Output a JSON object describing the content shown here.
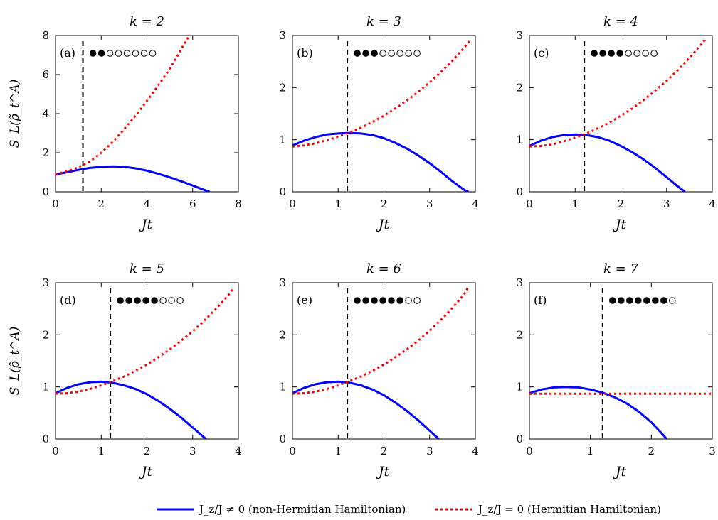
{
  "chart_data": [
    {
      "type": "line",
      "title": "k = 2",
      "panel_label": "(a)",
      "xlabel": "Jt",
      "ylabel": "S_L(ρ̃_t^A)",
      "xlim": [
        0,
        8
      ],
      "ylim": [
        0,
        8
      ],
      "xticks": [
        0,
        2,
        4,
        6,
        8
      ],
      "yticks": [
        0,
        2,
        4,
        6,
        8
      ],
      "dashed_vline_x": 1.2,
      "occupation": {
        "filled": 2,
        "empty": 6
      },
      "series": [
        {
          "name": "J_z/J ≠ 0 (non-Hermitian Hamiltonian)",
          "style": "solid",
          "color": "#0000ff",
          "x": [
            0,
            0.5,
            1,
            1.5,
            2,
            2.5,
            3,
            3.5,
            4,
            4.5,
            5,
            5.5,
            6,
            6.5,
            6.75
          ],
          "y": [
            0.88,
            1.0,
            1.12,
            1.22,
            1.28,
            1.3,
            1.28,
            1.2,
            1.08,
            0.92,
            0.74,
            0.54,
            0.32,
            0.1,
            0
          ]
        },
        {
          "name": "J_z/J = 0 (Hermitian Hamiltonian)",
          "style": "dotted",
          "color": "#ff0000",
          "x": [
            0,
            0.5,
            1,
            1.5,
            2,
            2.5,
            3,
            3.5,
            4,
            4.5,
            5,
            5.5,
            5.85
          ],
          "y": [
            0.88,
            1.05,
            1.25,
            1.55,
            2.0,
            2.55,
            3.2,
            3.9,
            4.65,
            5.45,
            6.3,
            7.3,
            8.0
          ]
        }
      ]
    },
    {
      "type": "line",
      "title": "k = 3",
      "panel_label": "(b)",
      "xlabel": "Jt",
      "ylabel": "",
      "xlim": [
        0,
        4
      ],
      "ylim": [
        0,
        3
      ],
      "xticks": [
        0,
        1,
        2,
        3,
        4
      ],
      "yticks": [
        0,
        1,
        2,
        3
      ],
      "dashed_vline_x": 1.2,
      "occupation": {
        "filled": 3,
        "empty": 5
      },
      "series": [
        {
          "name": "J_z/J ≠ 0 (non-Hermitian Hamiltonian)",
          "style": "solid",
          "color": "#0000ff",
          "x": [
            0,
            0.25,
            0.5,
            0.75,
            1,
            1.25,
            1.5,
            1.75,
            2,
            2.25,
            2.5,
            2.75,
            3,
            3.25,
            3.5,
            3.75,
            3.85
          ],
          "y": [
            0.89,
            0.98,
            1.05,
            1.1,
            1.12,
            1.13,
            1.12,
            1.09,
            1.03,
            0.94,
            0.83,
            0.7,
            0.55,
            0.38,
            0.2,
            0.04,
            0
          ]
        },
        {
          "name": "J_z/J = 0 (Hermitian Hamiltonian)",
          "style": "dotted",
          "color": "#ff0000",
          "x": [
            0,
            0.25,
            0.5,
            0.75,
            1,
            1.25,
            1.5,
            1.75,
            2,
            2.25,
            2.5,
            2.75,
            3,
            3.25,
            3.5,
            3.75,
            3.9
          ],
          "y": [
            0.87,
            0.89,
            0.93,
            0.99,
            1.06,
            1.14,
            1.23,
            1.34,
            1.46,
            1.6,
            1.75,
            1.92,
            2.1,
            2.3,
            2.52,
            2.76,
            2.92
          ]
        }
      ]
    },
    {
      "type": "line",
      "title": "k = 4",
      "panel_label": "(c)",
      "xlabel": "Jt",
      "ylabel": "",
      "xlim": [
        0,
        4
      ],
      "ylim": [
        0,
        3
      ],
      "xticks": [
        0,
        1,
        2,
        3,
        4
      ],
      "yticks": [
        0,
        1,
        2,
        3
      ],
      "dashed_vline_x": 1.2,
      "occupation": {
        "filled": 4,
        "empty": 4
      },
      "series": [
        {
          "name": "J_z/J ≠ 0 (non-Hermitian Hamiltonian)",
          "style": "solid",
          "color": "#0000ff",
          "x": [
            0,
            0.25,
            0.5,
            0.75,
            1,
            1.25,
            1.5,
            1.75,
            2,
            2.25,
            2.5,
            2.75,
            3,
            3.25,
            3.4
          ],
          "y": [
            0.88,
            0.98,
            1.05,
            1.09,
            1.1,
            1.09,
            1.05,
            0.98,
            0.88,
            0.76,
            0.62,
            0.46,
            0.28,
            0.1,
            0
          ]
        },
        {
          "name": "J_z/J = 0 (Hermitian Hamiltonian)",
          "style": "dotted",
          "color": "#ff0000",
          "x": [
            0,
            0.25,
            0.5,
            0.75,
            1,
            1.25,
            1.5,
            1.75,
            2,
            2.25,
            2.5,
            2.75,
            3,
            3.25,
            3.5,
            3.75,
            3.85
          ],
          "y": [
            0.87,
            0.88,
            0.91,
            0.97,
            1.04,
            1.12,
            1.22,
            1.33,
            1.46,
            1.6,
            1.76,
            1.94,
            2.13,
            2.34,
            2.57,
            2.82,
            2.93
          ]
        }
      ]
    },
    {
      "type": "line",
      "title": "k = 5",
      "panel_label": "(d)",
      "xlabel": "Jt",
      "ylabel": "S_L(ρ̃_t^A)",
      "xlim": [
        0,
        4
      ],
      "ylim": [
        0,
        3
      ],
      "xticks": [
        0,
        1,
        2,
        3,
        4
      ],
      "yticks": [
        0,
        1,
        2,
        3
      ],
      "dashed_vline_x": 1.2,
      "occupation": {
        "filled": 5,
        "empty": 3
      },
      "series": [
        {
          "name": "J_z/J ≠ 0 (non-Hermitian Hamiltonian)",
          "style": "solid",
          "color": "#0000ff",
          "x": [
            0,
            0.25,
            0.5,
            0.75,
            1,
            1.25,
            1.5,
            1.75,
            2,
            2.25,
            2.5,
            2.75,
            3,
            3.25,
            3.3
          ],
          "y": [
            0.88,
            0.98,
            1.05,
            1.09,
            1.1,
            1.08,
            1.03,
            0.96,
            0.86,
            0.73,
            0.58,
            0.41,
            0.22,
            0.03,
            0
          ]
        },
        {
          "name": "J_z/J = 0 (Hermitian Hamiltonian)",
          "style": "dotted",
          "color": "#ff0000",
          "x": [
            0,
            0.25,
            0.5,
            0.75,
            1,
            1.25,
            1.5,
            1.75,
            2,
            2.25,
            2.5,
            2.75,
            3,
            3.25,
            3.5,
            3.75,
            3.9
          ],
          "y": [
            0.87,
            0.88,
            0.91,
            0.96,
            1.03,
            1.11,
            1.2,
            1.31,
            1.43,
            1.57,
            1.72,
            1.89,
            2.07,
            2.27,
            2.49,
            2.73,
            2.9
          ]
        }
      ]
    },
    {
      "type": "line",
      "title": "k = 6",
      "panel_label": "(e)",
      "xlabel": "Jt",
      "ylabel": "",
      "xlim": [
        0,
        4
      ],
      "ylim": [
        0,
        3
      ],
      "xticks": [
        0,
        1,
        2,
        3,
        4
      ],
      "yticks": [
        0,
        1,
        2,
        3
      ],
      "dashed_vline_x": 1.2,
      "occupation": {
        "filled": 6,
        "empty": 2
      },
      "series": [
        {
          "name": "J_z/J ≠ 0 (non-Hermitian Hamiltonian)",
          "style": "solid",
          "color": "#0000ff",
          "x": [
            0,
            0.25,
            0.5,
            0.75,
            1,
            1.25,
            1.5,
            1.75,
            2,
            2.25,
            2.5,
            2.75,
            3,
            3.2
          ],
          "y": [
            0.88,
            0.98,
            1.05,
            1.09,
            1.1,
            1.08,
            1.03,
            0.95,
            0.84,
            0.7,
            0.54,
            0.36,
            0.16,
            0
          ]
        },
        {
          "name": "J_z/J = 0 (Hermitian Hamiltonian)",
          "style": "dotted",
          "color": "#ff0000",
          "x": [
            0,
            0.25,
            0.5,
            0.75,
            1,
            1.25,
            1.5,
            1.75,
            2,
            2.25,
            2.5,
            2.75,
            3,
            3.25,
            3.5,
            3.75,
            3.85
          ],
          "y": [
            0.87,
            0.88,
            0.91,
            0.96,
            1.03,
            1.11,
            1.2,
            1.31,
            1.43,
            1.57,
            1.72,
            1.89,
            2.08,
            2.29,
            2.52,
            2.77,
            2.93
          ]
        }
      ]
    },
    {
      "type": "line",
      "title": "k = 7",
      "panel_label": "(f)",
      "xlabel": "Jt",
      "ylabel": "",
      "xlim": [
        0,
        3
      ],
      "ylim": [
        0,
        3
      ],
      "xticks": [
        0,
        1,
        2,
        3
      ],
      "yticks": [
        0,
        1,
        2,
        3
      ],
      "dashed_vline_x": 1.2,
      "occupation": {
        "filled": 7,
        "empty": 1
      },
      "series": [
        {
          "name": "J_z/J ≠ 0 (non-Hermitian Hamiltonian)",
          "style": "solid",
          "color": "#0000ff",
          "x": [
            0,
            0.2,
            0.4,
            0.6,
            0.8,
            1.0,
            1.2,
            1.4,
            1.6,
            1.8,
            2.0,
            2.2,
            2.25
          ],
          "y": [
            0.88,
            0.95,
            0.99,
            1.0,
            0.99,
            0.95,
            0.89,
            0.8,
            0.68,
            0.52,
            0.32,
            0.07,
            0
          ]
        },
        {
          "name": "J_z/J = 0 (Hermitian Hamiltonian)",
          "style": "dotted",
          "color": "#ff0000",
          "x": [
            0,
            0.5,
            1,
            1.5,
            2,
            2.5,
            3
          ],
          "y": [
            0.87,
            0.87,
            0.87,
            0.87,
            0.87,
            0.87,
            0.87
          ]
        }
      ]
    }
  ],
  "legend": {
    "items": [
      {
        "label": "J_z/J ≠ 0 (non-Hermitian Hamiltonian)",
        "color": "#0000ff",
        "style": "solid"
      },
      {
        "label": "J_z/J = 0 (Hermitian Hamiltonian)",
        "color": "#ff0000",
        "style": "dotted"
      }
    ]
  }
}
